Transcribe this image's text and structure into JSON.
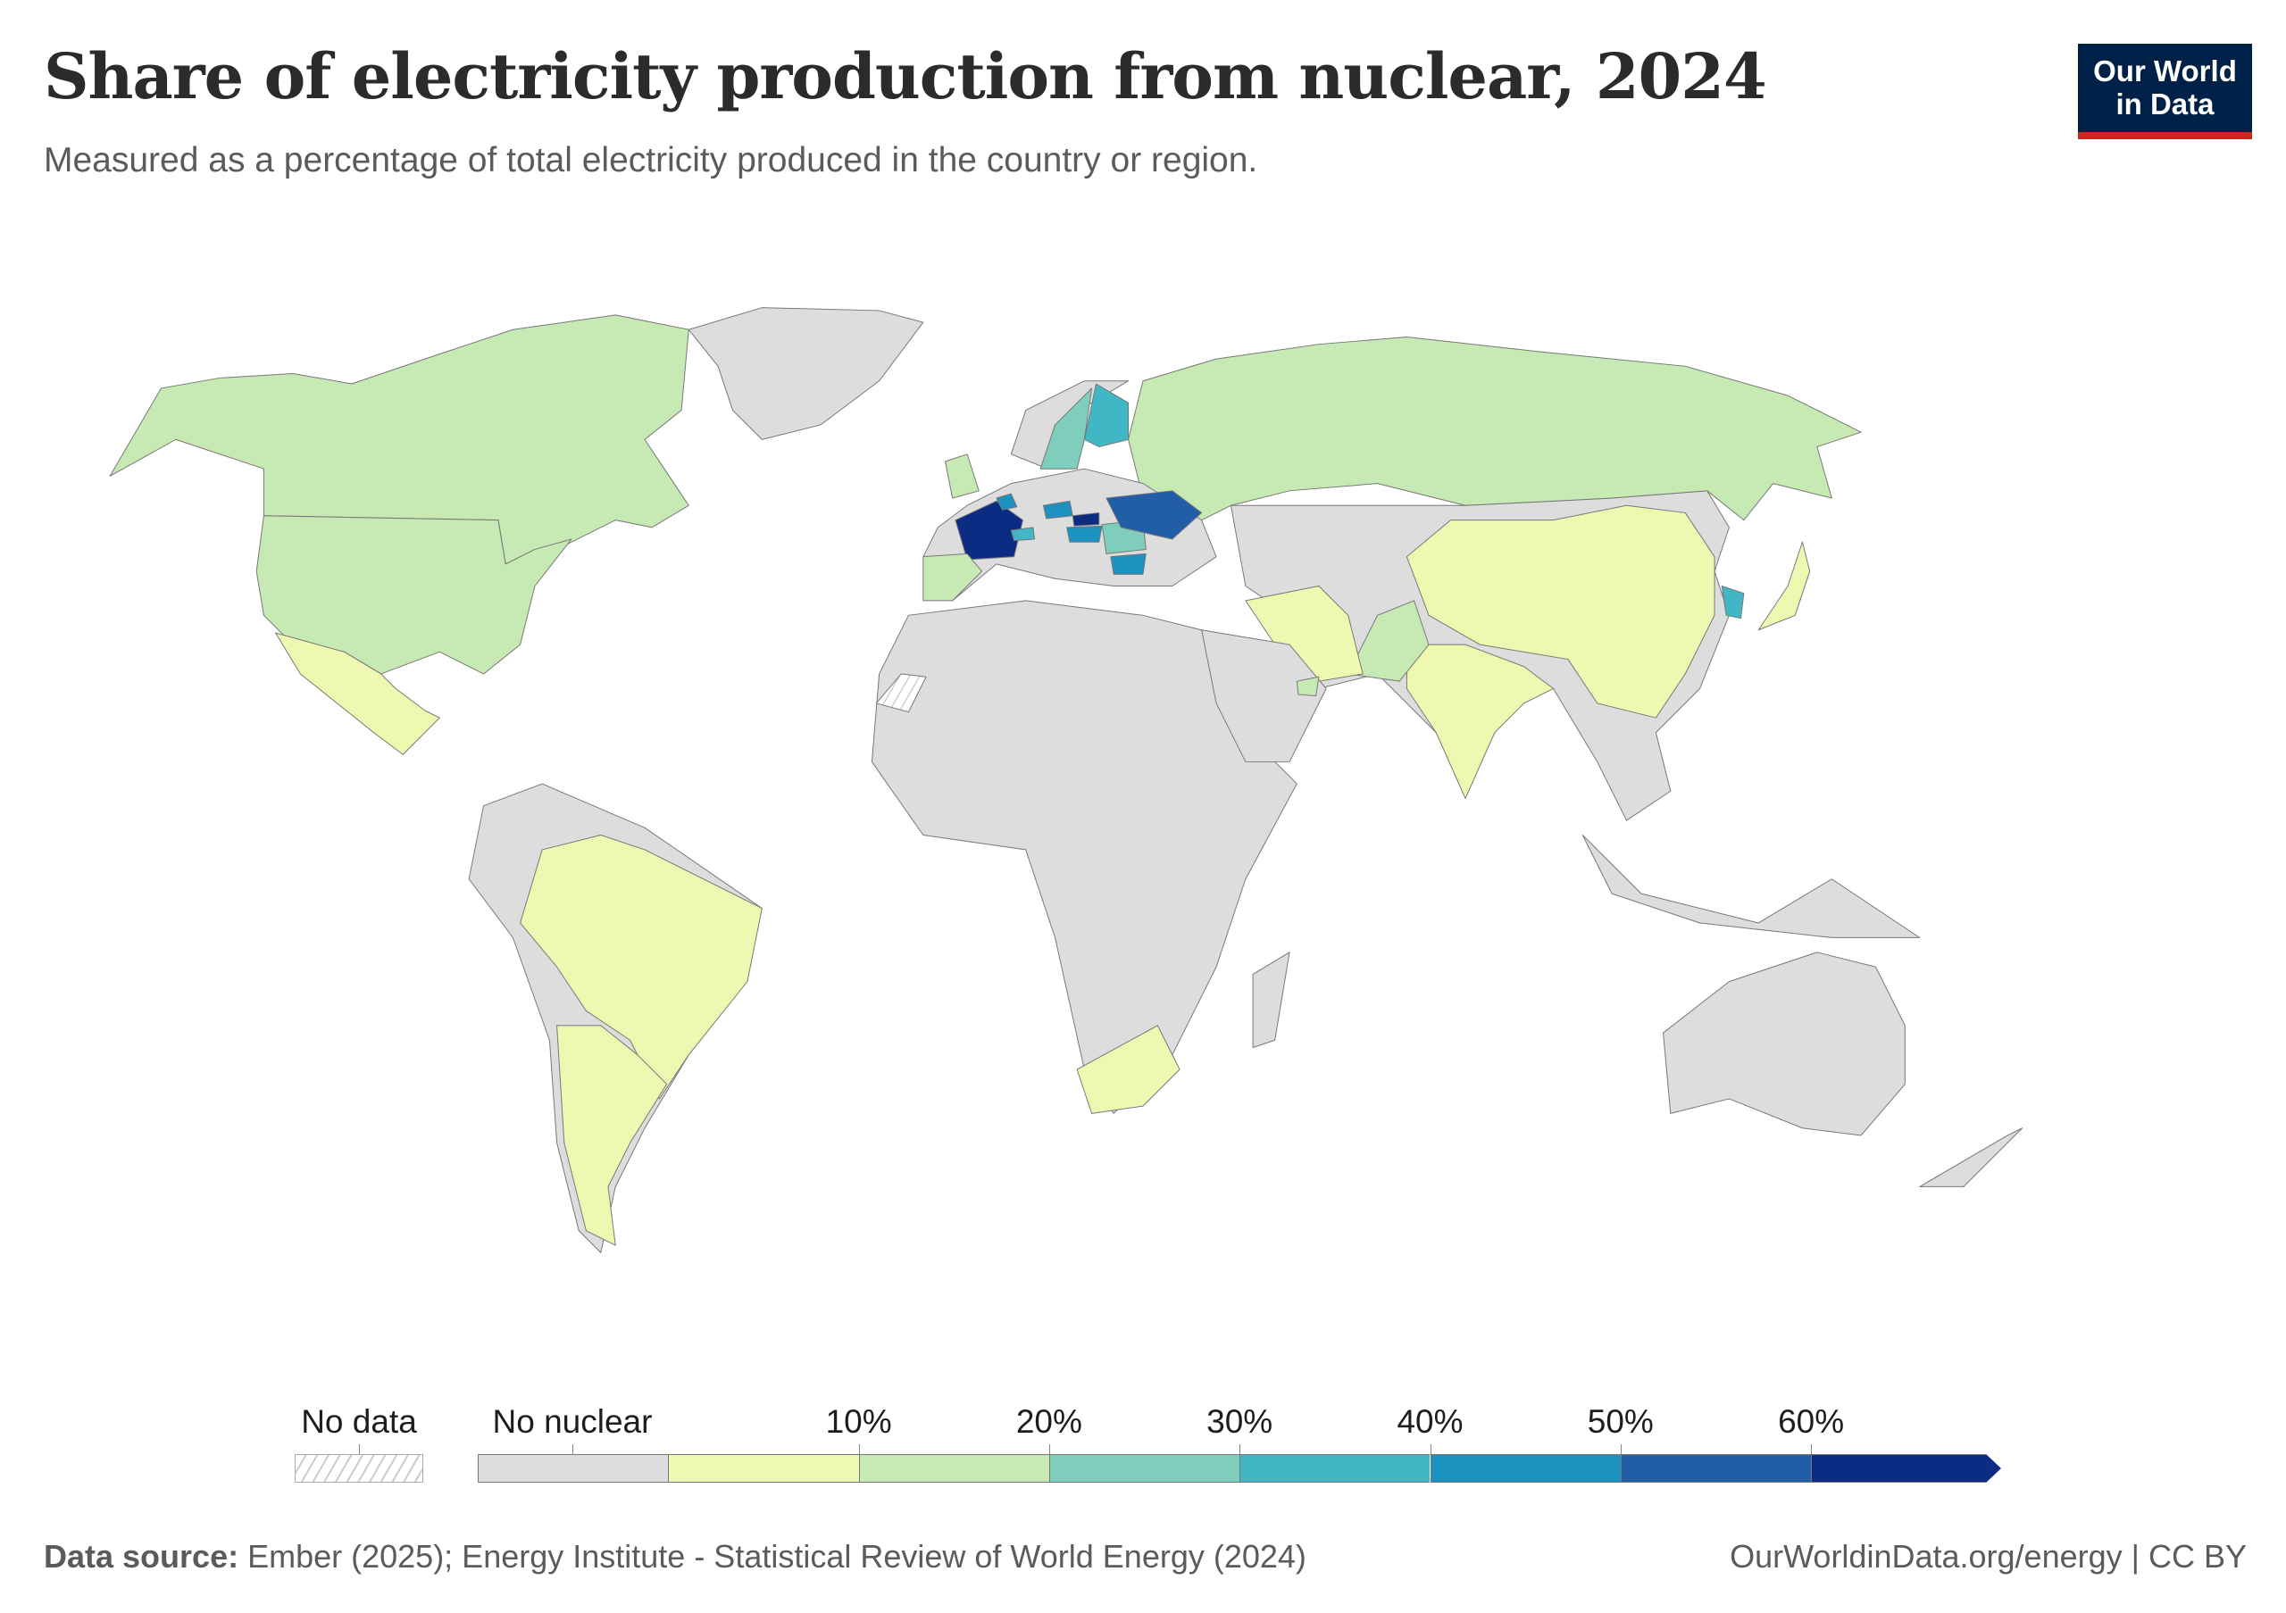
{
  "header": {
    "title": "Share of electricity production from nuclear, 2024",
    "subtitle": "Measured as a percentage of total electricity produced in the country or region.",
    "logo_line1": "Our World",
    "logo_line2": "in Data"
  },
  "legend": {
    "no_data_label": "No data",
    "no_nuclear_label": "No nuclear",
    "ticks": [
      "10%",
      "20%",
      "30%",
      "40%",
      "50%",
      "60%"
    ],
    "bins": [
      {
        "range": "No nuclear",
        "color": "#dddddd"
      },
      {
        "range": "0-10%",
        "color": "#edf8b1"
      },
      {
        "range": "10-20%",
        "color": "#c7e9b4"
      },
      {
        "range": "20-30%",
        "color": "#7fcdbb"
      },
      {
        "range": "30-40%",
        "color": "#41b6c4"
      },
      {
        "range": "40-50%",
        "color": "#1d91c0"
      },
      {
        "range": "50-60%",
        "color": "#225ea8"
      },
      {
        "range": ">60%",
        "color": "#0c2c84"
      }
    ]
  },
  "map_fills": {
    "canada": 2,
    "united_states": 2,
    "mexico": 1,
    "greenland": 0,
    "south_america": 0,
    "brazil": 1,
    "argentina": 1,
    "africa": 0,
    "south_africa": 1,
    "madagascar": 0,
    "russia": 2,
    "asia": 0,
    "china": 1,
    "india": 1,
    "pakistan": 2,
    "iran": 1,
    "arabia": 0,
    "uae": 2,
    "norway": 0,
    "sweden": 3,
    "finland": 4,
    "europe": 0,
    "france": 7,
    "spain": 2,
    "united_kingdom": 2,
    "ukraine": 6,
    "slovakia": 7,
    "hungary": 5,
    "czechia": 5,
    "bulgaria": 5,
    "romania": 3,
    "belgium": 5,
    "switzerland": 4,
    "japan": 1,
    "south_korea": 4,
    "indonesia": 0,
    "australia": 0,
    "new_zealand": 0,
    "western_sahara": "no_data"
  },
  "footer": {
    "source_label": "Data source:",
    "source_text": " Ember (2025); Energy Institute - Statistical Review of World Energy (2024)",
    "url_license": "OurWorldinData.org/energy | CC BY"
  }
}
